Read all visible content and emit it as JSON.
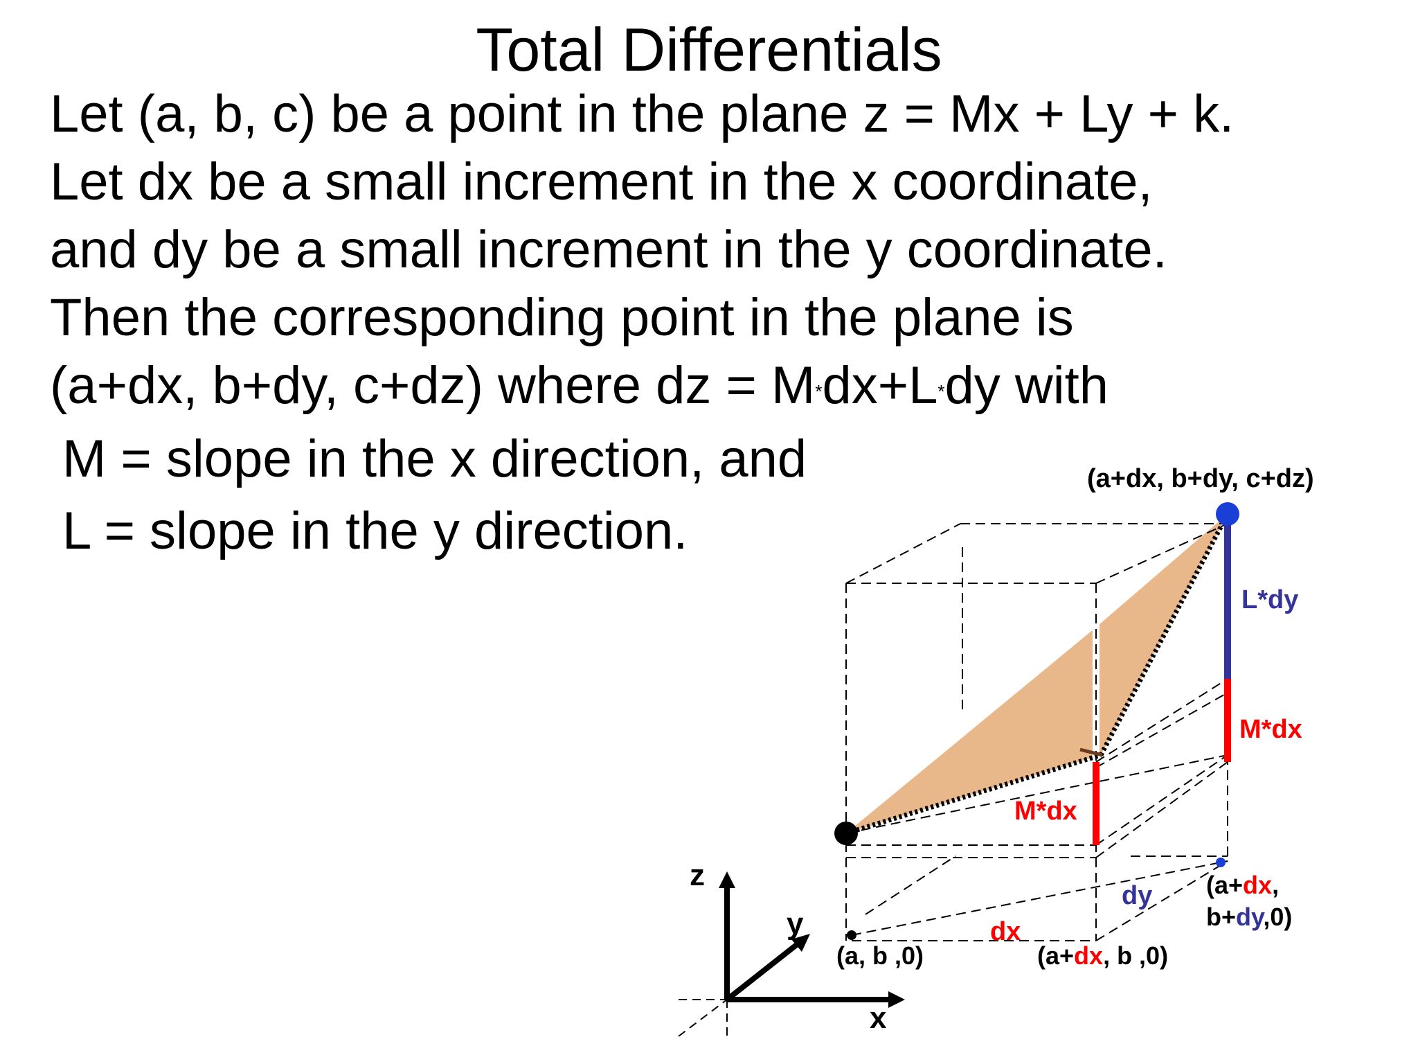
{
  "title": "Total Differentials",
  "lines": {
    "l1": "Let (a, b, c) be a point in the plane z = Mx + Ly + k.",
    "l2": "Let dx be a small increment in the x coordinate,",
    "l3": "and dy be a small increment in the y coordinate.",
    "l4": "Then the corresponding point in the plane is",
    "l5_a": "(a+dx, b+dy, c+dz) where dz = M",
    "l5_star1": "*",
    "l5_b": "dx+L",
    "l5_star2": "*",
    "l5_c": "dy with"
  },
  "defs": {
    "m": "M = slope in the x direction, and",
    "l": "L = slope in the y direction."
  },
  "diagram": {
    "top_point": "(a+dx, b+dy, c+dz)",
    "ldy": "L*dy",
    "mdx_right": "M*dx",
    "mdx_mid": "M*dx",
    "axis_z": "z",
    "axis_y": "y",
    "axis_x": "x",
    "p_ab0": "(a, b ,0)",
    "p_adx_open": "(a+",
    "p_adx_dx": "dx",
    "p_adx_close": ", b ,0)",
    "dx": "dx",
    "dy": "dy",
    "p_full_l1_open": "(a+",
    "p_full_l1_dx": "dx",
    "p_full_l1_close": ",",
    "p_full_l2_open": "b+",
    "p_full_l2_dy": "dy",
    "p_full_l2_close": ",0)"
  },
  "colors": {
    "red": "#ff0000",
    "blue": "#333399",
    "plane": "#e8b88a",
    "point_blue": "#1a3fd6"
  }
}
